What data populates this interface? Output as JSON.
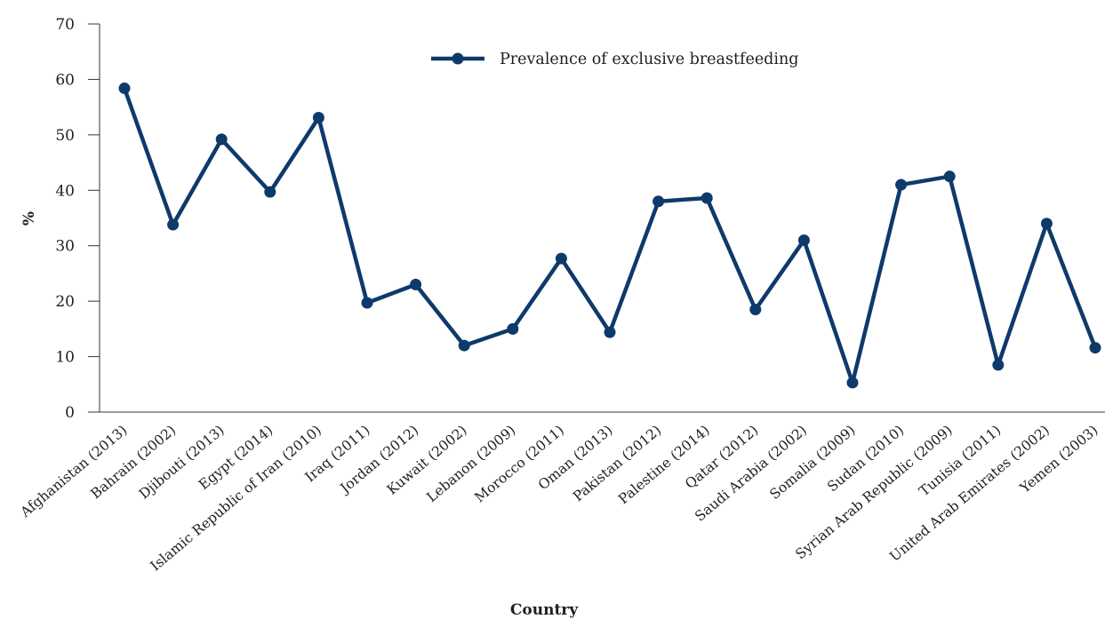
{
  "chart_data": {
    "type": "line",
    "title": "",
    "xlabel": "Country",
    "ylabel": "%",
    "ylim": [
      0,
      70
    ],
    "yticks": [
      0,
      10,
      20,
      30,
      40,
      50,
      60,
      70
    ],
    "grid": false,
    "legend_position": "top-center",
    "categories": [
      "Afghanistan (2013)",
      "Bahrain (2002)",
      "Djibouti (2013)",
      "Egypt (2014)",
      "Islamic Republic of Iran (2010)",
      "Iraq (2011)",
      "Jordan (2012)",
      "Kuwait (2002)",
      "Lebanon (2009)",
      "Morocco (2011)",
      "Oman (2013)",
      "Pakistan (2012)",
      "Palestine (2014)",
      "Qatar (2012)",
      "Saudi Arabia (2002)",
      "Somalia (2009)",
      "Sudan (2010)",
      "Syrian Arab Republic (2009)",
      "Tunisia (2011)",
      "United Arab Emirates (2002)",
      "Yemen (2003)"
    ],
    "series": [
      {
        "name": "Prevalence of exclusive breastfeeding",
        "color": "#0e3a6b",
        "values": [
          58.4,
          33.8,
          49.2,
          39.7,
          53.1,
          19.7,
          23.0,
          12.0,
          15.0,
          27.7,
          14.4,
          38.0,
          38.6,
          18.5,
          31.0,
          5.3,
          41.0,
          42.5,
          8.5,
          34.0,
          11.6
        ]
      }
    ]
  }
}
